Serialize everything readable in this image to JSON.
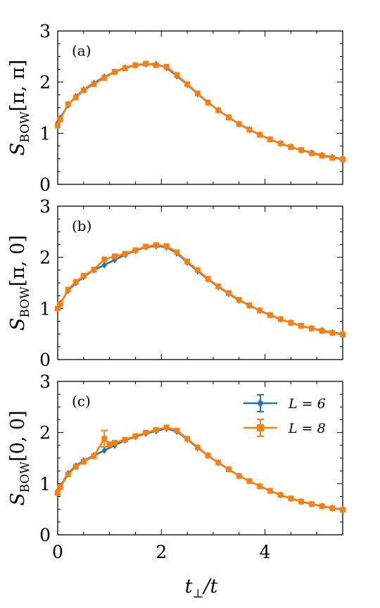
{
  "figure": {
    "xlabel": {
      "base": "t",
      "sub": "⊥",
      "tail": "/t"
    },
    "xlim": [
      0,
      5.5
    ],
    "x_ticks": [
      0,
      2,
      4
    ],
    "x_tick_labels": [
      "0",
      "2",
      "4"
    ],
    "legend_position": "inside panel (c), upper right",
    "colors": {
      "L6": "#1f77b4",
      "L8": "#ff7f0e"
    }
  },
  "legend": [
    {
      "label": "L = 6",
      "color": "#1f77b4",
      "marker": "diamond"
    },
    {
      "label": "L = 8",
      "color": "#ff7f0e",
      "marker": "square"
    }
  ],
  "chart_data": [
    {
      "type": "line",
      "panel_label": "(a)",
      "ylabel": {
        "base": "S",
        "sub": "BOW",
        "arg": "[π, π]"
      },
      "xlim": [
        0,
        5.5
      ],
      "ylim": [
        0,
        3
      ],
      "y_ticks": [
        0,
        1,
        2,
        3
      ],
      "y_tick_labels": [
        "0",
        "1",
        "2",
        "3"
      ],
      "series": [
        {
          "name": "L = 6",
          "x": [
            0.0,
            0.05,
            0.2,
            0.35,
            0.5,
            0.7,
            0.9,
            1.1,
            1.3,
            1.5,
            1.7,
            1.9,
            2.1,
            2.3,
            2.5,
            2.7,
            2.9,
            3.1,
            3.3,
            3.5,
            3.7,
            3.9,
            4.1,
            4.3,
            4.5,
            4.7,
            4.9,
            5.1,
            5.3,
            5.5
          ],
          "y": [
            1.2,
            1.3,
            1.55,
            1.72,
            1.85,
            1.98,
            2.1,
            2.2,
            2.28,
            2.33,
            2.35,
            2.35,
            2.28,
            2.12,
            1.95,
            1.77,
            1.6,
            1.45,
            1.31,
            1.18,
            1.07,
            0.97,
            0.88,
            0.8,
            0.73,
            0.67,
            0.62,
            0.57,
            0.53,
            0.5
          ]
        },
        {
          "name": "L = 8",
          "x": [
            0.0,
            0.05,
            0.2,
            0.35,
            0.5,
            0.7,
            0.9,
            1.1,
            1.3,
            1.5,
            1.7,
            1.9,
            2.1,
            2.3,
            2.5,
            2.7,
            2.9,
            3.1,
            3.3,
            3.5,
            3.7,
            3.9,
            4.1,
            4.3,
            4.5,
            4.7,
            4.9,
            5.1,
            5.3,
            5.5
          ],
          "y": [
            1.15,
            1.27,
            1.57,
            1.7,
            1.84,
            1.96,
            2.08,
            2.2,
            2.27,
            2.33,
            2.36,
            2.33,
            2.3,
            2.14,
            1.96,
            1.78,
            1.6,
            1.45,
            1.31,
            1.18,
            1.07,
            0.97,
            0.88,
            0.8,
            0.73,
            0.67,
            0.61,
            0.56,
            0.52,
            0.49
          ]
        }
      ]
    },
    {
      "type": "line",
      "panel_label": "(b)",
      "ylabel": {
        "base": "S",
        "sub": "BOW",
        "arg": "[π, 0]"
      },
      "xlim": [
        0,
        5.5
      ],
      "ylim": [
        0,
        3
      ],
      "y_ticks": [
        0,
        1,
        2,
        3
      ],
      "y_tick_labels": [
        "0",
        "1",
        "2",
        "3"
      ],
      "series": [
        {
          "name": "L = 6",
          "x": [
            0.0,
            0.05,
            0.2,
            0.35,
            0.5,
            0.7,
            0.9,
            1.1,
            1.3,
            1.5,
            1.7,
            1.9,
            2.1,
            2.3,
            2.5,
            2.7,
            2.9,
            3.1,
            3.3,
            3.5,
            3.7,
            3.9,
            4.1,
            4.3,
            4.5,
            4.7,
            4.9,
            5.1,
            5.3,
            5.5
          ],
          "y": [
            1.0,
            1.1,
            1.35,
            1.5,
            1.62,
            1.75,
            1.85,
            1.95,
            2.05,
            2.13,
            2.2,
            2.22,
            2.2,
            2.08,
            1.9,
            1.73,
            1.57,
            1.42,
            1.29,
            1.16,
            1.06,
            0.96,
            0.87,
            0.79,
            0.72,
            0.66,
            0.61,
            0.57,
            0.53,
            0.5
          ]
        },
        {
          "name": "L = 8",
          "x": [
            0.0,
            0.05,
            0.2,
            0.35,
            0.5,
            0.7,
            0.9,
            1.1,
            1.3,
            1.5,
            1.7,
            1.9,
            2.1,
            2.3,
            2.5,
            2.7,
            2.9,
            3.1,
            3.3,
            3.5,
            3.7,
            3.9,
            4.1,
            4.3,
            4.5,
            4.7,
            4.9,
            5.1,
            5.3,
            5.5
          ],
          "y": [
            1.0,
            1.08,
            1.37,
            1.52,
            1.64,
            1.76,
            1.96,
            2.02,
            2.07,
            2.14,
            2.21,
            2.24,
            2.22,
            2.1,
            1.92,
            1.75,
            1.58,
            1.43,
            1.3,
            1.17,
            1.06,
            0.96,
            0.87,
            0.79,
            0.72,
            0.66,
            0.61,
            0.56,
            0.52,
            0.49
          ]
        }
      ]
    },
    {
      "type": "line",
      "panel_label": "(c)",
      "ylabel": {
        "base": "S",
        "sub": "BOW",
        "arg": "[0, 0]"
      },
      "xlim": [
        0,
        5.5
      ],
      "ylim": [
        0,
        3
      ],
      "y_ticks": [
        0,
        1,
        2,
        3
      ],
      "y_tick_labels": [
        "0",
        "1",
        "2",
        "3"
      ],
      "series": [
        {
          "name": "L = 6",
          "x": [
            0.0,
            0.05,
            0.2,
            0.35,
            0.5,
            0.7,
            0.9,
            1.1,
            1.3,
            1.5,
            1.7,
            1.9,
            2.1,
            2.3,
            2.5,
            2.7,
            2.9,
            3.1,
            3.3,
            3.5,
            3.7,
            3.9,
            4.1,
            4.3,
            4.5,
            4.7,
            4.9,
            5.1,
            5.3,
            5.5
          ],
          "y": [
            0.85,
            0.95,
            1.2,
            1.35,
            1.45,
            1.55,
            1.65,
            1.75,
            1.85,
            1.92,
            1.98,
            2.03,
            2.08,
            2.02,
            1.87,
            1.7,
            1.55,
            1.41,
            1.28,
            1.15,
            1.05,
            0.95,
            0.86,
            0.78,
            0.71,
            0.65,
            0.6,
            0.56,
            0.52,
            0.5
          ]
        },
        {
          "name": "L = 8",
          "x": [
            0.0,
            0.05,
            0.2,
            0.35,
            0.5,
            0.7,
            0.9,
            1.0,
            1.1,
            1.3,
            1.5,
            1.7,
            1.9,
            2.1,
            2.3,
            2.5,
            2.7,
            2.9,
            3.1,
            3.3,
            3.5,
            3.7,
            3.9,
            4.1,
            4.3,
            4.5,
            4.7,
            4.9,
            5.1,
            5.3,
            5.5
          ],
          "y": [
            0.82,
            0.93,
            1.18,
            1.33,
            1.43,
            1.54,
            1.88,
            1.77,
            1.8,
            1.86,
            1.93,
            2.0,
            2.05,
            2.1,
            2.04,
            1.88,
            1.71,
            1.55,
            1.41,
            1.28,
            1.15,
            1.05,
            0.95,
            0.86,
            0.78,
            0.71,
            0.65,
            0.6,
            0.56,
            0.52,
            0.49
          ],
          "yerr": [
            0.03,
            0.03,
            0.03,
            0.03,
            0.03,
            0.03,
            0.16,
            0.03,
            0.03,
            0.03,
            0.03,
            0.03,
            0.03,
            0.03,
            0.03,
            0.03,
            0.03,
            0.03,
            0.03,
            0.03,
            0.03,
            0.03,
            0.03,
            0.03,
            0.03,
            0.03,
            0.03,
            0.03,
            0.03,
            0.03,
            0.03
          ]
        }
      ]
    }
  ]
}
